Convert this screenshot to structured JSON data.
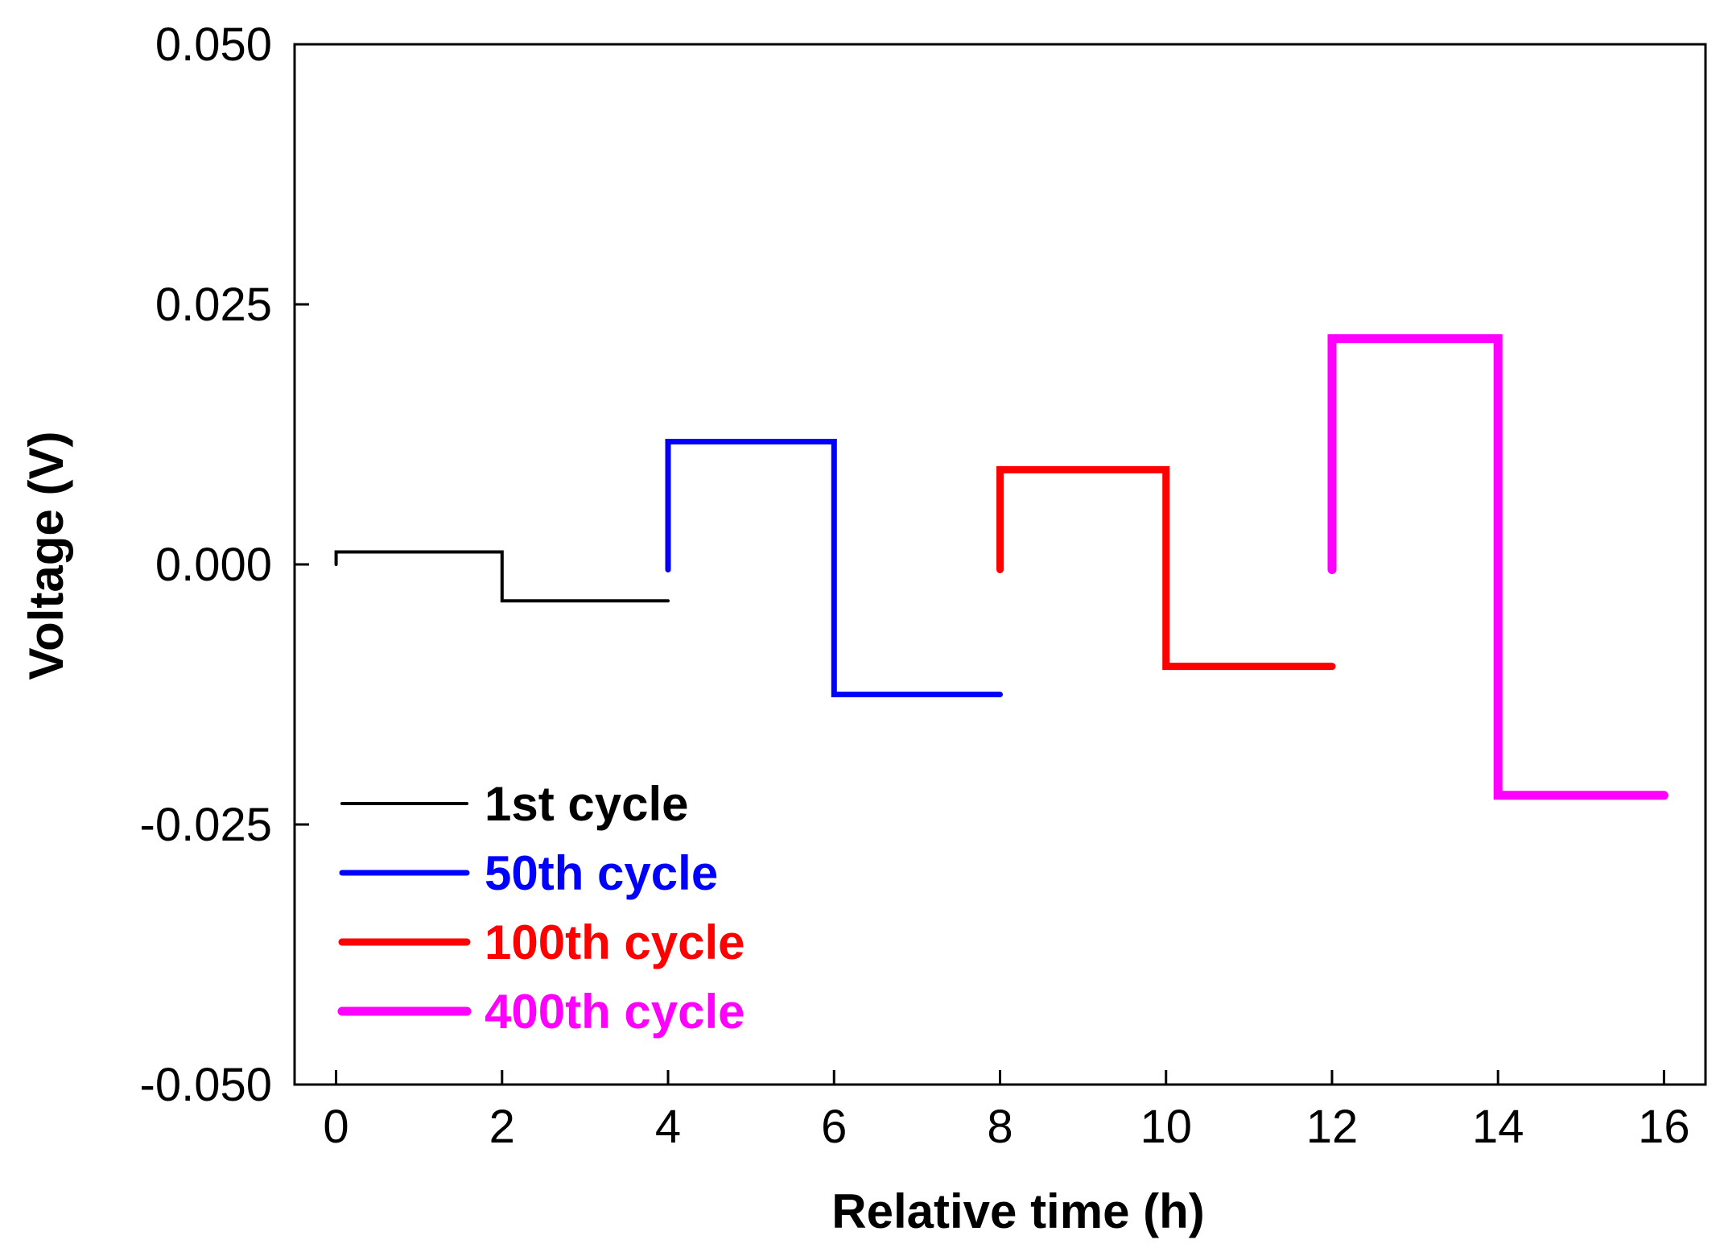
{
  "chart_data": {
    "type": "line",
    "title": "",
    "xlabel": "Relative time (h)",
    "ylabel": "Voltage (V)",
    "xlim": [
      -0.5,
      16.5
    ],
    "ylim": [
      -0.05,
      0.05
    ],
    "xticks": [
      0,
      2,
      4,
      6,
      8,
      10,
      12,
      14,
      16
    ],
    "xtick_labels": [
      "0",
      "2",
      "4",
      "6",
      "8",
      "10",
      "12",
      "14",
      "16"
    ],
    "yticks": [
      0.05,
      0.025,
      0.0,
      -0.025,
      -0.05
    ],
    "ytick_labels": [
      "0.050",
      "0.025",
      "0.000",
      "-0.025",
      "-0.050"
    ],
    "grid": false,
    "legend_position": "bottom-left",
    "series": [
      {
        "name": "1st cycle",
        "color": "#000000",
        "x": [
          0,
          0,
          2,
          2,
          4
        ],
        "y": [
          0.0,
          0.0012,
          0.0012,
          -0.0035,
          -0.0035
        ]
      },
      {
        "name": "50th cycle",
        "color": "#0000ff",
        "x": [
          4,
          4,
          6,
          6,
          8
        ],
        "y": [
          -0.0005,
          0.0118,
          0.0118,
          -0.0125,
          -0.0125
        ]
      },
      {
        "name": "100th cycle",
        "color": "#ff0000",
        "x": [
          8,
          8,
          10,
          10,
          12
        ],
        "y": [
          -0.0005,
          0.0091,
          0.0091,
          -0.0098,
          -0.0098
        ]
      },
      {
        "name": "400th cycle",
        "color": "#ff00ff",
        "x": [
          12,
          12,
          14,
          14,
          16
        ],
        "y": [
          -0.0005,
          0.0217,
          0.0217,
          -0.0222,
          -0.0222
        ]
      }
    ]
  }
}
